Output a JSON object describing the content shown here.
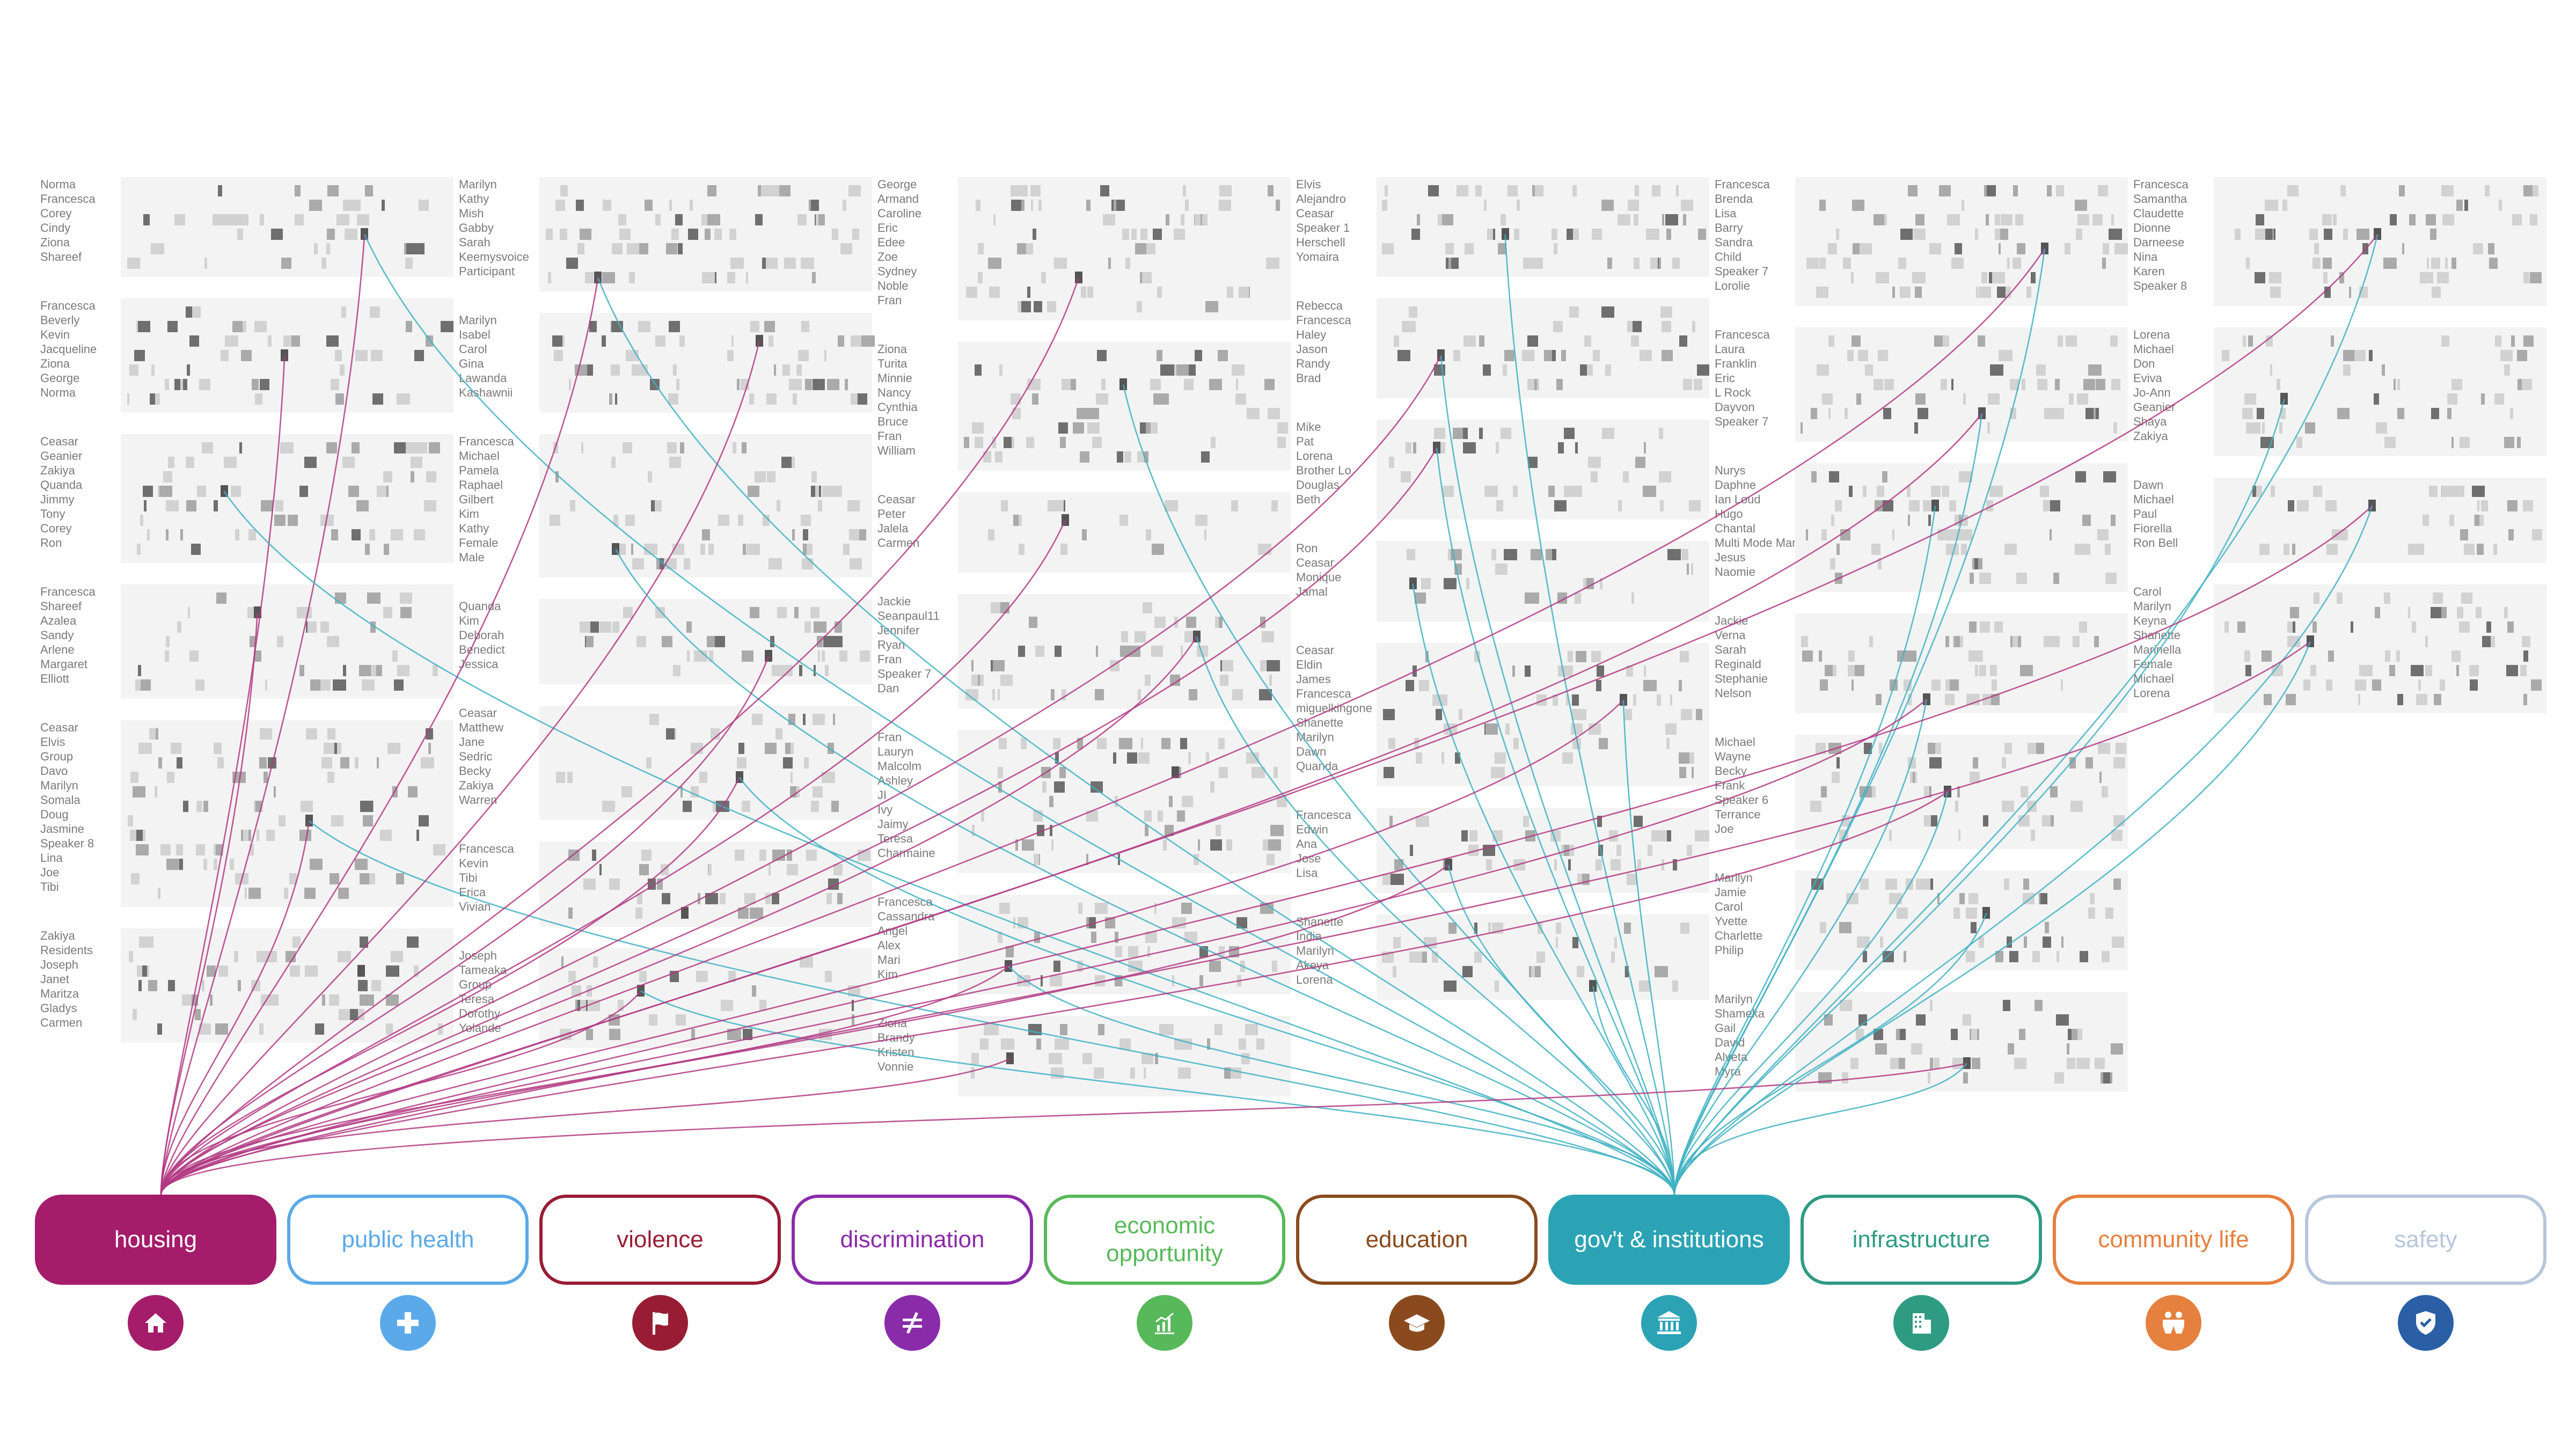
{
  "categories": [
    {
      "key": "housing",
      "label": "housing",
      "color": "#a51c6b",
      "active": true,
      "icon": "home-icon"
    },
    {
      "key": "public-health",
      "label": "public health",
      "color": "#5ba9e8",
      "active": false,
      "icon": "health-cross-icon"
    },
    {
      "key": "violence",
      "label": "violence",
      "color": "#981d34",
      "active": false,
      "icon": "flag-icon"
    },
    {
      "key": "discrimination",
      "label": "discrimination",
      "color": "#8a2ba9",
      "active": false,
      "icon": "not-equal-icon"
    },
    {
      "key": "economic-opportunity",
      "label": "economic opportunity",
      "color": "#58b95a",
      "active": false,
      "icon": "bar-chart-icon"
    },
    {
      "key": "education",
      "label": "education",
      "color": "#8a4a1e",
      "active": false,
      "icon": "graduation-cap-icon"
    },
    {
      "key": "govt-institutions",
      "label": "gov't & institutions",
      "color": "#2ba3b5",
      "active": true,
      "icon": "institution-icon"
    },
    {
      "key": "infrastructure",
      "label": "infrastructure",
      "color": "#2f9b82",
      "active": false,
      "icon": "building-icon"
    },
    {
      "key": "community-life",
      "label": "community life",
      "color": "#e5803e",
      "active": false,
      "icon": "people-icon"
    },
    {
      "key": "safety",
      "label": "safety",
      "color": "#b6c6dc",
      "icon_color": "#2a5fa6",
      "active": false,
      "icon": "shield-check-icon"
    }
  ],
  "conversations": [
    [
      {
        "speakers": [
          "Norma",
          "Francesca",
          "Corey",
          "Cindy",
          "Ziona",
          "Shareef"
        ]
      },
      {
        "speakers": [
          "Francesca",
          "Beverly",
          "Kevin",
          "Jacqueline",
          "Ziona",
          "George",
          "Norma"
        ]
      },
      {
        "speakers": [
          "Ceasar",
          "Geanier",
          "Zakiya",
          "Quanda",
          "Jimmy",
          "Tony",
          "Corey",
          "Ron"
        ]
      },
      {
        "speakers": [
          "Francesca",
          "Shareef",
          "Azalea",
          "Sandy",
          "Arlene",
          "Margaret",
          "Elliott"
        ]
      },
      {
        "speakers": [
          "Ceasar",
          "Elvis",
          "Group",
          "Davo",
          "Marilyn",
          "Somala",
          "Doug",
          "Jasmine",
          "Speaker 8",
          "Lina",
          "Joe",
          "Tibi"
        ]
      },
      {
        "speakers": [
          "Zakiya",
          "Residents",
          "Joseph",
          "Janet",
          "Maritza",
          "Gladys",
          "Carmen"
        ]
      }
    ],
    [
      {
        "speakers": [
          "Marilyn",
          "Kathy",
          "Mish",
          "Gabby",
          "Sarah",
          "Keemysvoice",
          "Participant"
        ]
      },
      {
        "speakers": [
          "Marilyn",
          "Isabel",
          "Carol",
          "Gina",
          "Lawanda",
          "Kashawnii"
        ]
      },
      {
        "speakers": [
          "Francesca",
          "Michael",
          "Pamela",
          "Raphael",
          "Gilbert",
          "Kim",
          "Kathy",
          "Female",
          "Male"
        ]
      },
      {
        "speakers": [
          "Quanda",
          "Kim",
          "Deborah",
          "Benedict",
          "Jessica"
        ]
      },
      {
        "speakers": [
          "Ceasar",
          "Matthew",
          "Jane",
          "Sedric",
          "Becky",
          "Zakiya",
          "Warren"
        ]
      },
      {
        "speakers": [
          "Francesca",
          "Kevin",
          "Tibi",
          "Erica",
          "Vivian"
        ]
      },
      {
        "speakers": [
          "Joseph",
          "Tameaka",
          "Group",
          "Teresa",
          "Dorothy",
          "Yolande"
        ]
      }
    ],
    [
      {
        "speakers": [
          "George",
          "Armand",
          "Caroline",
          "Eric",
          "Edee",
          "Zoe",
          "Sydney",
          "Noble",
          "Fran"
        ]
      },
      {
        "speakers": [
          "Ziona",
          "Turita",
          "Minnie",
          "Nancy",
          "Cynthia",
          "Bruce",
          "Fran",
          "William"
        ]
      },
      {
        "speakers": [
          "Ceasar",
          "Peter",
          "Jalela",
          "Carmen"
        ]
      },
      {
        "speakers": [
          "Jackie",
          "Seanpaul11",
          "Jennifer",
          "Ryan",
          "Fran",
          "Speaker 7",
          "Dan"
        ]
      },
      {
        "speakers": [
          "Fran",
          "Lauryn",
          "Malcolm",
          "Ashley",
          "JI",
          "Ivy",
          "Jaimy",
          "Teresa",
          "Charmaine"
        ]
      },
      {
        "speakers": [
          "Francesca",
          "Cassandra",
          "Angel",
          "Alex",
          "Mari",
          "Kim"
        ]
      },
      {
        "speakers": [
          "Ziona",
          "Brandy",
          "Kristen",
          "Vonnie"
        ]
      }
    ],
    [
      {
        "speakers": [
          "Elvis",
          "Alejandro",
          "Ceasar",
          "Speaker 1",
          "Herschell",
          "Yomaira"
        ]
      },
      {
        "speakers": [
          "Rebecca",
          "Francesca",
          "Haley",
          "Jason",
          "Randy",
          "Brad"
        ]
      },
      {
        "speakers": [
          "Mike",
          "Pat",
          "Lorena",
          "Brother Lo",
          "Douglas",
          "Beth"
        ]
      },
      {
        "speakers": [
          "Ron",
          "Ceasar",
          "Monique",
          "Jamal"
        ]
      },
      {
        "speakers": [
          "Ceasar",
          "Eldin",
          "James",
          "Francesca",
          "miguelkingone",
          "Shanette",
          "Marilyn",
          "Dawn",
          "Quanda"
        ]
      },
      {
        "speakers": [
          "Francesca",
          "Edwin",
          "Ana",
          "Jose",
          "Lisa"
        ]
      },
      {
        "speakers": [
          "Shanette",
          "India",
          "Marilyn",
          "Akeya",
          "Lorena"
        ]
      }
    ],
    [
      {
        "speakers": [
          "Francesca",
          "Brenda",
          "Lisa",
          "Barry",
          "Sandra",
          "Child",
          "Speaker 7",
          "Lorolie"
        ]
      },
      {
        "speakers": [
          "Francesca",
          "Laura",
          "Franklin",
          "Eric",
          "L Rock",
          "Dayvon",
          "Speaker 7"
        ]
      },
      {
        "speakers": [
          "Nurys",
          "Daphne",
          "Ian Loud",
          "Hugo",
          "Chantal",
          "Multi Mode Mama",
          "Jesus",
          "Naomie"
        ]
      },
      {
        "speakers": [
          "Jackie",
          "Verna",
          "Sarah",
          "Reginald",
          "Stephanie",
          "Nelson"
        ]
      },
      {
        "speakers": [
          "Michael",
          "Wayne",
          "Becky",
          "Frank",
          "Speaker 6",
          "Terrance",
          "Joe"
        ]
      },
      {
        "speakers": [
          "Marilyn",
          "Jamie",
          "Carol",
          "Yvette",
          "Charlette",
          "Philip"
        ]
      },
      {
        "speakers": [
          "Marilyn",
          "Shameka",
          "Gail",
          "David",
          "Alveta",
          "Myra"
        ]
      }
    ],
    [
      {
        "speakers": [
          "Francesca",
          "Samantha",
          "Claudette",
          "Dionne",
          "Darneese",
          "Nina",
          "Karen",
          "Speaker 8"
        ]
      },
      {
        "speakers": [
          "Lorena",
          "Michael",
          "Don",
          "Eviva",
          "Jo-Ann",
          "Geanier",
          "Shaya",
          "Zakiya"
        ]
      },
      {
        "speakers": [
          "Dawn",
          "Michael",
          "Paul",
          "Fiorella",
          "Ron Bell"
        ]
      },
      {
        "speakers": [
          "Carol",
          "Marilyn",
          "Keyna",
          "Shanette",
          "Marinella",
          "Female",
          "Michael",
          "Lorena"
        ]
      }
    ]
  ]
}
